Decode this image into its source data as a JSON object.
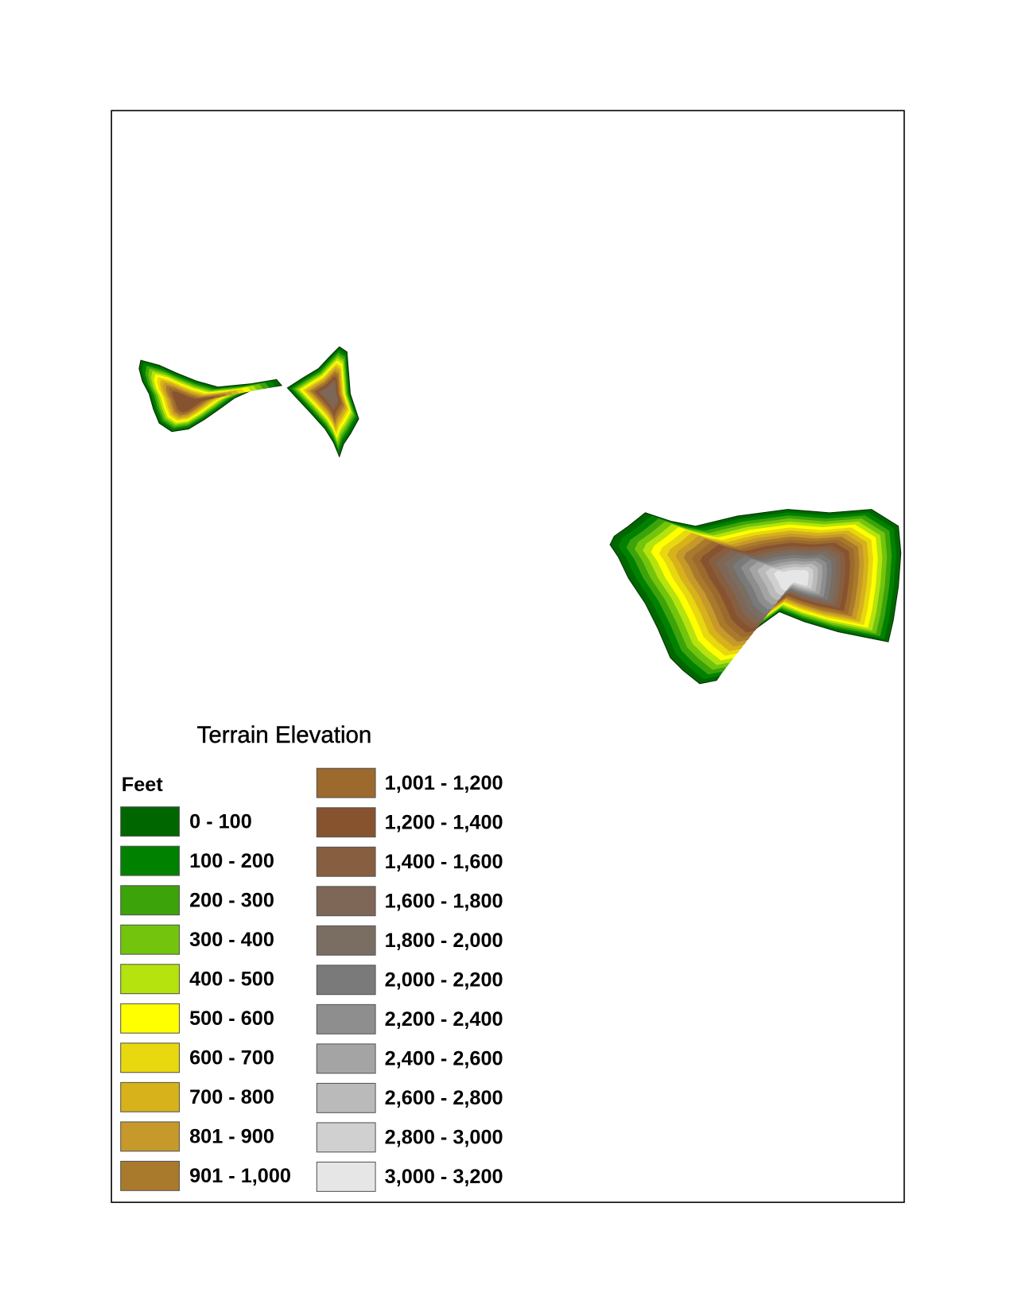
{
  "legend": {
    "title": "Terrain Elevation",
    "unit": "Feet",
    "items": [
      {
        "label": "0 - 100",
        "color": "#006600"
      },
      {
        "label": "100 - 200",
        "color": "#008200"
      },
      {
        "label": "200 - 300",
        "color": "#3ca30a"
      },
      {
        "label": "300 - 400",
        "color": "#72c50c"
      },
      {
        "label": "400 - 500",
        "color": "#b5e30d"
      },
      {
        "label": "500 - 600",
        "color": "#ffff00"
      },
      {
        "label": "600 - 700",
        "color": "#e8d80f"
      },
      {
        "label": "700 - 800",
        "color": "#d7b21a"
      },
      {
        "label": "801 - 900",
        "color": "#c6992a"
      },
      {
        "label": "901 - 1,000",
        "color": "#a97a2c"
      },
      {
        "label": "1,001 - 1,200",
        "color": "#9c6a2d"
      },
      {
        "label": "1,200 - 1,400",
        "color": "#87532f"
      },
      {
        "label": "1,400 - 1,600",
        "color": "#875e40"
      },
      {
        "label": "1,600 - 1,800",
        "color": "#7e6757"
      },
      {
        "label": "1,800 - 2,000",
        "color": "#7a6e62"
      },
      {
        "label": "2,000 - 2,200",
        "color": "#7a7a7a"
      },
      {
        "label": "2,200 - 2,400",
        "color": "#8e8e8e"
      },
      {
        "label": "2,400 - 2,600",
        "color": "#a4a4a4"
      },
      {
        "label": "2,600 - 2,800",
        "color": "#bababa"
      },
      {
        "label": "2,800 - 3,000",
        "color": "#d0d0d0"
      },
      {
        "label": "3,000 - 3,200",
        "color": "#e6e6e6"
      }
    ]
  }
}
